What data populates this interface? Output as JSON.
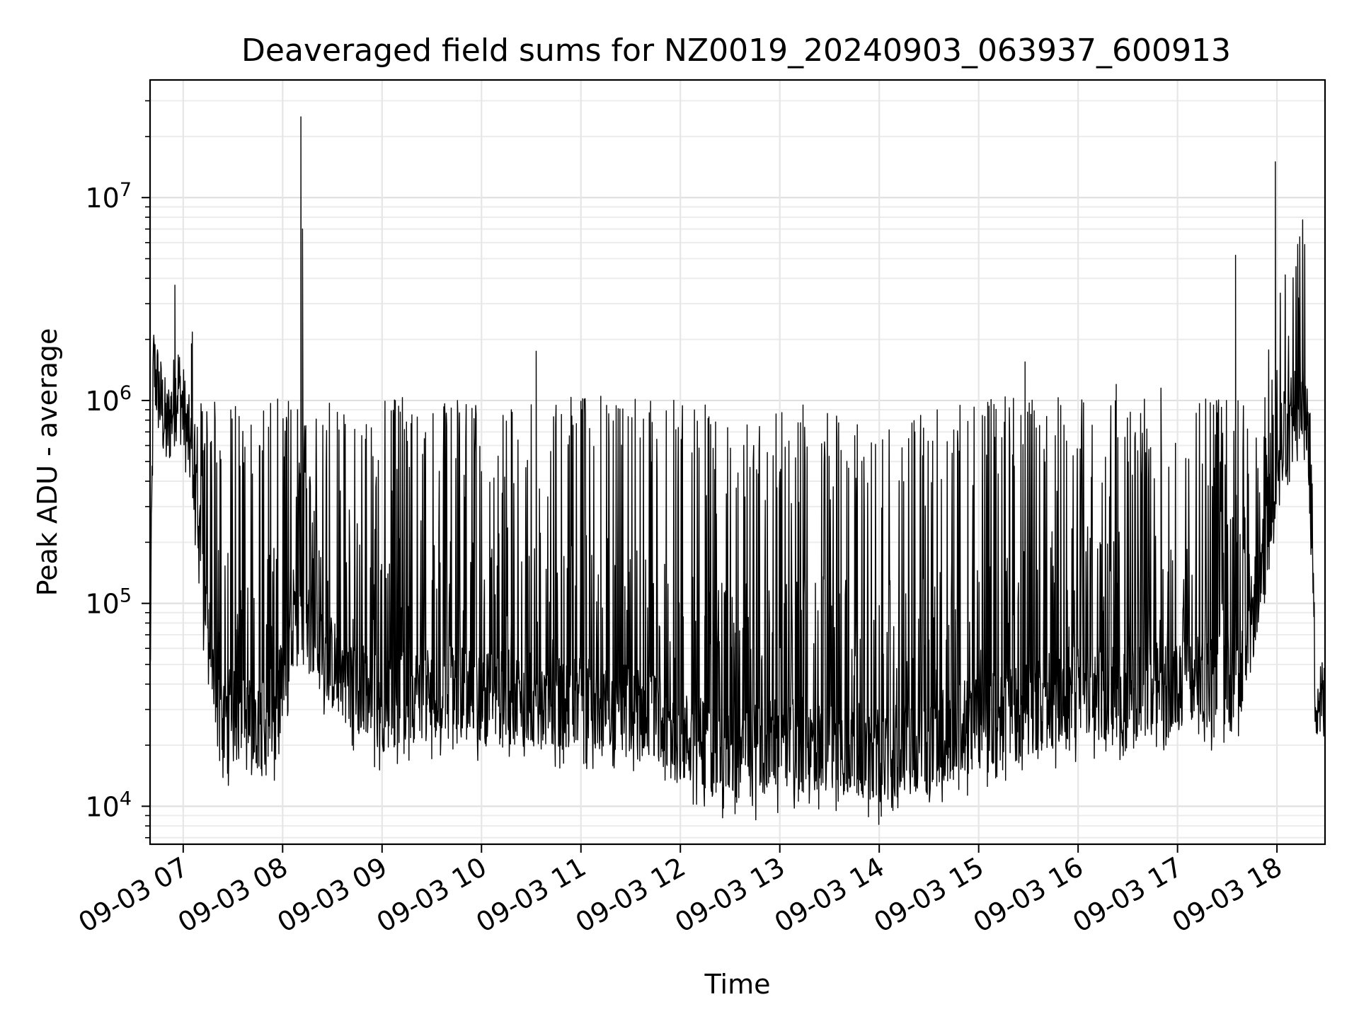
{
  "chart_data": {
    "type": "line",
    "title": "Deaveraged field sums for NZ0019_20240903_063937_600913",
    "xlabel": "Time",
    "ylabel": "Peak ADU - average",
    "xscale": "time",
    "yscale": "log",
    "xlim": [
      "2024-09-03 06:40",
      "2024-09-03 18:29"
    ],
    "ylim": [
      6500,
      38000000
    ],
    "grid": true,
    "line_color": "#000000",
    "x_ticks": [
      {
        "t": "2024-09-03 07:00",
        "label": "09-03 07"
      },
      {
        "t": "2024-09-03 08:00",
        "label": "09-03 08"
      },
      {
        "t": "2024-09-03 09:00",
        "label": "09-03 09"
      },
      {
        "t": "2024-09-03 10:00",
        "label": "09-03 10"
      },
      {
        "t": "2024-09-03 11:00",
        "label": "09-03 11"
      },
      {
        "t": "2024-09-03 12:00",
        "label": "09-03 12"
      },
      {
        "t": "2024-09-03 13:00",
        "label": "09-03 13"
      },
      {
        "t": "2024-09-03 14:00",
        "label": "09-03 14"
      },
      {
        "t": "2024-09-03 15:00",
        "label": "09-03 15"
      },
      {
        "t": "2024-09-03 16:00",
        "label": "09-03 16"
      },
      {
        "t": "2024-09-03 17:00",
        "label": "09-03 17"
      },
      {
        "t": "2024-09-03 18:00",
        "label": "09-03 18"
      }
    ],
    "y_ticks": [
      {
        "value": 10000,
        "base": "10",
        "exp": "4"
      },
      {
        "value": 100000,
        "base": "10",
        "exp": "5"
      },
      {
        "value": 1000000,
        "base": "10",
        "exp": "6"
      },
      {
        "value": 10000000,
        "base": "10",
        "exp": "7"
      }
    ],
    "series": [
      {
        "baseline": [
          [
            "2024-09-03 06:40",
            42000
          ],
          [
            "2024-09-03 06:42",
            1500000
          ],
          [
            "2024-09-03 06:50",
            700000
          ],
          [
            "2024-09-03 06:57",
            1200000
          ],
          [
            "2024-09-03 07:03",
            650000
          ],
          [
            "2024-09-03 07:08",
            400000
          ],
          [
            "2024-09-03 07:12",
            130000
          ],
          [
            "2024-09-03 07:20",
            30000
          ],
          [
            "2024-09-03 07:40",
            25000
          ],
          [
            "2024-09-03 07:55",
            28000
          ],
          [
            "2024-09-03 08:10",
            90000
          ],
          [
            "2024-09-03 08:30",
            50000
          ],
          [
            "2024-09-03 09:00",
            32000
          ],
          [
            "2024-09-03 09:30",
            38000
          ],
          [
            "2024-09-03 10:00",
            35000
          ],
          [
            "2024-09-03 11:00",
            32000
          ],
          [
            "2024-09-03 11:40",
            28000
          ],
          [
            "2024-09-03 12:00",
            22000
          ],
          [
            "2024-09-03 12:30",
            18000
          ],
          [
            "2024-09-03 13:00",
            20000
          ],
          [
            "2024-09-03 13:30",
            20000
          ],
          [
            "2024-09-03 14:00",
            18000
          ],
          [
            "2024-09-03 14:30",
            21000
          ],
          [
            "2024-09-03 15:00",
            26000
          ],
          [
            "2024-09-03 15:30",
            30000
          ],
          [
            "2024-09-03 16:00",
            37000
          ],
          [
            "2024-09-03 16:30",
            36000
          ],
          [
            "2024-09-03 17:00",
            38000
          ],
          [
            "2024-09-03 17:40",
            45000
          ],
          [
            "2024-09-03 17:52",
            200000
          ],
          [
            "2024-09-03 18:05",
            700000
          ],
          [
            "2024-09-03 18:17",
            1200000
          ],
          [
            "2024-09-03 18:21",
            300000
          ],
          [
            "2024-09-03 18:23",
            38000
          ],
          [
            "2024-09-03 18:29",
            30000
          ]
        ],
        "spikes": [
          [
            "2024-09-03 06:55",
            3700000
          ],
          [
            "2024-09-03 07:05",
            1900000
          ],
          [
            "2024-09-03 08:11",
            25000000
          ],
          [
            "2024-09-03 08:12",
            7000000
          ],
          [
            "2024-09-03 08:37",
            850000
          ],
          [
            "2024-09-03 09:18",
            850000
          ],
          [
            "2024-09-03 10:18",
            900000
          ],
          [
            "2024-09-03 10:33",
            1750000
          ],
          [
            "2024-09-03 11:12",
            1050000
          ],
          [
            "2024-09-03 12:15",
            950000
          ],
          [
            "2024-09-03 13:14",
            950000
          ],
          [
            "2024-09-03 15:28",
            1550000
          ],
          [
            "2024-09-03 16:23",
            1200000
          ],
          [
            "2024-09-03 16:50",
            1150000
          ],
          [
            "2024-09-03 17:35",
            5200000
          ],
          [
            "2024-09-03 17:59",
            15000000
          ],
          [
            "2024-09-03 18:13",
            3200000
          ]
        ]
      }
    ]
  }
}
